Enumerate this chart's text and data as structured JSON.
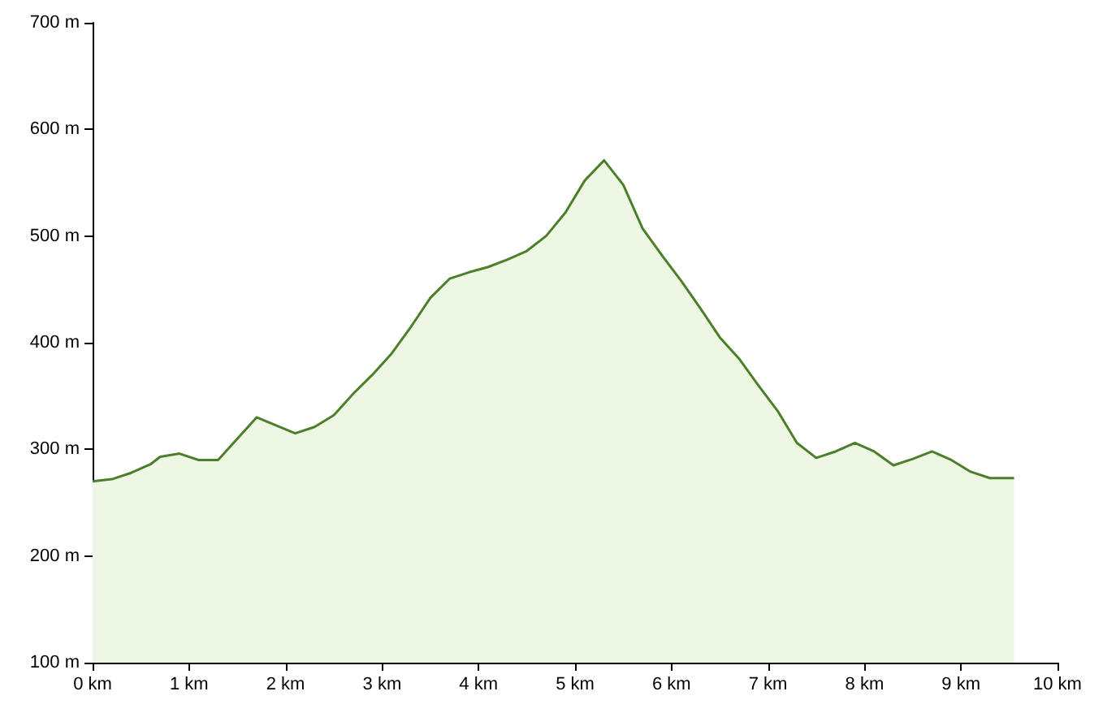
{
  "chart_data": {
    "type": "area",
    "x": [
      0,
      0.2,
      0.4,
      0.6,
      0.7,
      0.9,
      1.1,
      1.3,
      1.5,
      1.7,
      2.1,
      2.3,
      2.5,
      2.7,
      2.9,
      3.1,
      3.3,
      3.5,
      3.7,
      3.9,
      4.1,
      4.3,
      4.5,
      4.7,
      4.9,
      5.1,
      5.3,
      5.5,
      5.7,
      5.9,
      6.1,
      6.3,
      6.5,
      6.7,
      6.9,
      7.1,
      7.3,
      7.5,
      7.7,
      7.9,
      8.1,
      8.3,
      8.5,
      8.7,
      8.9,
      9.1,
      9.3,
      9.55
    ],
    "series": [
      {
        "color": "#4c7f2a",
        "values": [
          270,
          272,
          278,
          286,
          293,
          296,
          290,
          290,
          310,
          330,
          315,
          321,
          332,
          352,
          370,
          390,
          415,
          442,
          460,
          466,
          471,
          478,
          486,
          500,
          522,
          552,
          571,
          548,
          507,
          482,
          458,
          432,
          405,
          385,
          360,
          336,
          306,
          292,
          298,
          306,
          298,
          285,
          291,
          298,
          290,
          279,
          273,
          273
        ]
      }
    ],
    "xlim": [
      0,
      10
    ],
    "ylim": [
      100,
      700
    ],
    "xticks": [
      {
        "value": 0,
        "label": "0 km"
      },
      {
        "value": 1,
        "label": "1 km"
      },
      {
        "value": 2,
        "label": "2 km"
      },
      {
        "value": 3,
        "label": "3 km"
      },
      {
        "value": 4,
        "label": "4 km"
      },
      {
        "value": 5,
        "label": "5 km"
      },
      {
        "value": 6,
        "label": "6 km"
      },
      {
        "value": 7,
        "label": "7 km"
      },
      {
        "value": 8,
        "label": "8 km"
      },
      {
        "value": 9,
        "label": "9 km"
      },
      {
        "value": 10,
        "label": "10 km"
      }
    ],
    "yticks": [
      {
        "value": 100,
        "label": "100 m"
      },
      {
        "value": 200,
        "label": "200 m"
      },
      {
        "value": 300,
        "label": "300 m"
      },
      {
        "value": 400,
        "label": "400 m"
      },
      {
        "value": 500,
        "label": "500 m"
      },
      {
        "value": 600,
        "label": "600 m"
      },
      {
        "value": 700,
        "label": "700 m"
      }
    ],
    "marker": "none",
    "line_style": "solid"
  }
}
